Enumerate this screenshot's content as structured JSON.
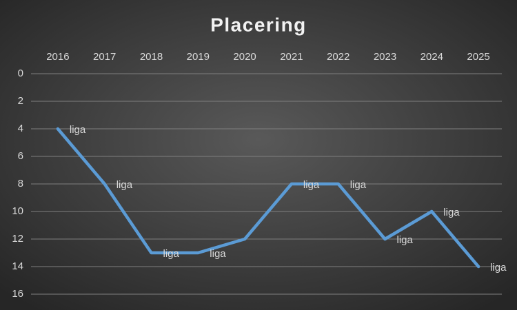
{
  "chart_data": {
    "type": "line",
    "title": "Placering",
    "categories": [
      "2016",
      "2017",
      "2018",
      "2019",
      "2020",
      "2021",
      "2022",
      "2023",
      "2024",
      "2025"
    ],
    "series": [
      {
        "name": "liga",
        "color": "#5b9bd5",
        "values": [
          4,
          8,
          13,
          13,
          12,
          8,
          8,
          12,
          10,
          14
        ],
        "value_labels": [
          "liga",
          "liga",
          "liga",
          "liga",
          null,
          "liga",
          "liga",
          "liga",
          "liga",
          "liga"
        ]
      }
    ],
    "ylim": [
      0,
      16
    ],
    "yticks": [
      0,
      2,
      4,
      6,
      8,
      10,
      12,
      14,
      16
    ],
    "y_inverted": true,
    "x_axis_position": "top",
    "grid": true
  }
}
